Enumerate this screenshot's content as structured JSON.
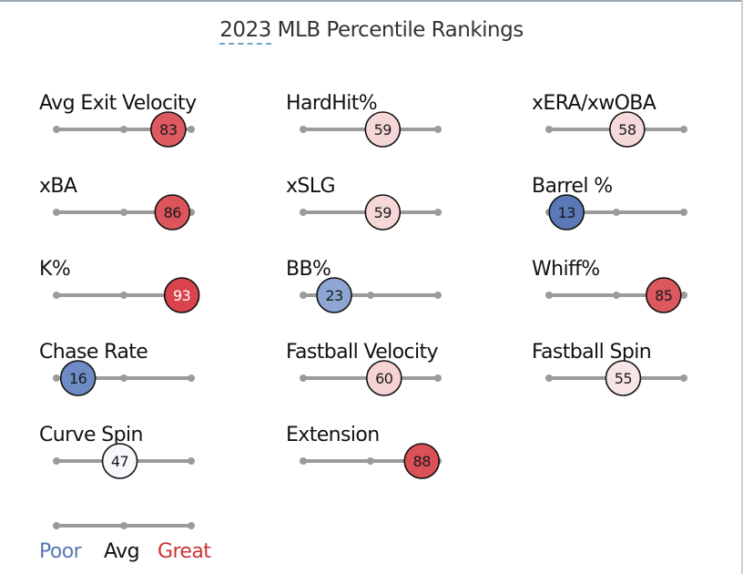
{
  "page": {
    "title_year": "2023",
    "title_rest": " MLB Percentile Rankings"
  },
  "colors": {
    "track": "#9b9b9b",
    "poor": "#5877b3",
    "avg": "#111111",
    "great": "#cc3333"
  },
  "chart_data": {
    "type": "percentile-ranking",
    "title": "2023 MLB Percentile Rankings",
    "scale": [
      0,
      100
    ],
    "metrics": [
      {
        "label": "Avg Exit Velocity",
        "value": 83,
        "fill": "#dd5a60",
        "text": "#1a1a1a"
      },
      {
        "label": "HardHit%",
        "value": 59,
        "fill": "#f6d7d8",
        "text": "#1a1a1a"
      },
      {
        "label": "xERA/xwOBA",
        "value": 58,
        "fill": "#f6d9da",
        "text": "#1a1a1a"
      },
      {
        "label": "xBA",
        "value": 86,
        "fill": "#dc555b",
        "text": "#1a1a1a"
      },
      {
        "label": "xSLG",
        "value": 59,
        "fill": "#f6d7d8",
        "text": "#1a1a1a"
      },
      {
        "label": "Barrel %",
        "value": 13,
        "fill": "#5a79b6",
        "text": "#1a1a1a"
      },
      {
        "label": "K%",
        "value": 93,
        "fill": "#d9434c",
        "text": "#ffffff"
      },
      {
        "label": "BB%",
        "value": 23,
        "fill": "#8ea6d3",
        "text": "#1a1a1a"
      },
      {
        "label": "Whiff%",
        "value": 85,
        "fill": "#dc585e",
        "text": "#1a1a1a"
      },
      {
        "label": "Chase Rate",
        "value": 16,
        "fill": "#6d8bc5",
        "text": "#1a1a1a"
      },
      {
        "label": "Fastball Velocity",
        "value": 60,
        "fill": "#f5d2d4",
        "text": "#1a1a1a"
      },
      {
        "label": "Fastball Spin",
        "value": 55,
        "fill": "#f8e6e7",
        "text": "#1a1a1a"
      },
      {
        "label": "Curve Spin",
        "value": 47,
        "fill": "#f7f8fc",
        "text": "#1a1a1a"
      },
      {
        "label": "Extension",
        "value": 88,
        "fill": "#db5157",
        "text": "#1a1a1a"
      }
    ],
    "legend": {
      "poor": "Poor",
      "avg": "Avg",
      "great": "Great"
    }
  }
}
